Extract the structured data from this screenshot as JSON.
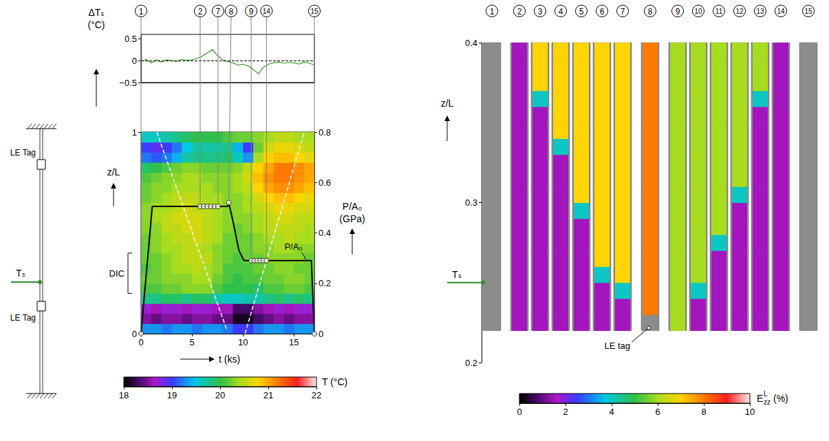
{
  "chart_data": [
    {
      "type": "line",
      "y_label": "ΔTₛ",
      "y_unit": "(°C)",
      "color": "#3a9a2a",
      "x": [
        0,
        0.5,
        1,
        1.5,
        2,
        2.5,
        3,
        3.5,
        4,
        4.5,
        5,
        5.5,
        6,
        6.5,
        7,
        7.5,
        8,
        8.5,
        9,
        9.5,
        10,
        10.5,
        11,
        11.5,
        12,
        12.5,
        13,
        13.5,
        14,
        14.5,
        15,
        15.5,
        16,
        16.5,
        17
      ],
      "values": [
        -0.02,
        0.03,
        -0.05,
        0.02,
        -0.03,
        0.02,
        0,
        -0.02,
        0.03,
        0.01,
        0.02,
        0.05,
        0.1,
        0.18,
        0.25,
        0.12,
        0.02,
        -0.02,
        -0.05,
        -0.1,
        -0.08,
        -0.12,
        -0.2,
        -0.3,
        -0.15,
        -0.08,
        -0.05,
        -0.03,
        -0.06,
        -0.04,
        -0.05,
        -0.08,
        -0.03,
        -0.06,
        -0.1
      ],
      "xlim": [
        0,
        17
      ],
      "ylim": [
        -0.5,
        0.6
      ],
      "yticks": [
        {
          "value": -0.5,
          "label": "−0.5"
        },
        0,
        0.5
      ],
      "tick_labels": "y",
      "reference_line": 0,
      "frame_labels": [
        "1",
        "2",
        "7",
        "8",
        "9",
        "14",
        "15"
      ]
    },
    {
      "type": "heatmap",
      "x_label": "t (ks)",
      "y_label": "z/L",
      "y2_label": "P/A₀",
      "y2_unit": "(GPa)",
      "xlim": [
        0,
        17
      ],
      "xticks": [
        0,
        5,
        10,
        15
      ],
      "ylim": [
        0,
        1
      ],
      "yticks": [
        0,
        1
      ],
      "y2lim": [
        0,
        0.8
      ],
      "y2ticks": [
        0,
        0.2,
        0.4,
        0.6,
        0.8
      ],
      "t_edges": [
        0,
        1,
        2,
        3,
        4,
        5,
        6,
        7,
        8,
        9,
        10,
        11,
        12,
        13,
        14,
        15,
        16,
        17
      ],
      "z_edges": [
        0,
        0.05,
        0.1,
        0.15,
        0.2,
        0.25,
        0.3,
        0.35,
        0.4,
        0.45,
        0.5,
        0.55,
        0.6,
        0.65,
        0.7,
        0.75,
        0.8,
        0.85,
        0.9,
        0.95,
        1
      ],
      "T": [
        [
          19.3,
          19.3,
          19.2,
          19.3,
          19.3,
          19.2,
          19.3,
          19.3,
          19.2,
          19.0,
          19.0,
          19.2,
          19.3,
          19.3,
          19.2,
          19.3,
          19.3
        ],
        [
          18.5,
          18.4,
          18.5,
          18.5,
          18.4,
          18.5,
          18.5,
          18.4,
          18.4,
          18.1,
          18.1,
          18.3,
          18.4,
          18.5,
          18.4,
          18.5,
          18.5
        ],
        [
          18.7,
          18.6,
          18.7,
          18.7,
          18.6,
          18.7,
          18.7,
          18.6,
          18.6,
          18.3,
          18.3,
          18.5,
          18.6,
          18.7,
          18.6,
          18.7,
          18.7
        ],
        [
          19.8,
          19.8,
          19.9,
          19.9,
          19.8,
          19.9,
          19.9,
          19.7,
          19.6,
          19.6,
          19.7,
          19.7,
          19.8,
          19.9,
          19.8,
          19.9,
          19.8
        ],
        [
          20.1,
          20.1,
          20.2,
          20.2,
          20.3,
          20.3,
          20.3,
          20.1,
          20.0,
          20.0,
          20.0,
          19.9,
          20.1,
          20.1,
          20.2,
          20.2,
          20.1
        ],
        [
          20.2,
          20.2,
          20.3,
          20.3,
          20.3,
          20.4,
          20.4,
          20.2,
          20.1,
          20.0,
          20.1,
          20.1,
          20.2,
          20.2,
          20.3,
          20.3,
          20.2
        ],
        [
          20.1,
          20.2,
          20.3,
          20.4,
          20.4,
          20.5,
          20.4,
          20.3,
          20.1,
          20.1,
          20.1,
          20.2,
          20.2,
          20.3,
          20.3,
          20.2,
          20.2
        ],
        [
          20.2,
          20.2,
          20.3,
          20.4,
          20.5,
          20.5,
          20.5,
          20.3,
          20.2,
          20.1,
          20.2,
          20.2,
          20.3,
          20.3,
          20.3,
          20.3,
          20.2
        ],
        [
          20.2,
          20.3,
          20.4,
          20.4,
          20.5,
          20.5,
          20.4,
          20.3,
          20.2,
          20.2,
          20.2,
          20.3,
          20.3,
          20.4,
          20.4,
          20.3,
          20.3
        ],
        [
          20.2,
          20.3,
          20.4,
          20.5,
          20.5,
          20.6,
          20.5,
          20.4,
          20.2,
          20.2,
          20.2,
          20.3,
          20.4,
          20.4,
          20.5,
          20.4,
          20.4
        ],
        [
          20.3,
          20.3,
          20.5,
          20.5,
          20.6,
          20.6,
          20.5,
          20.4,
          20.3,
          20.2,
          20.3,
          20.4,
          20.5,
          20.5,
          20.5,
          20.5,
          20.4
        ],
        [
          20.3,
          20.4,
          20.5,
          20.6,
          20.6,
          20.6,
          20.5,
          20.4,
          20.3,
          20.3,
          20.3,
          20.4,
          20.5,
          20.6,
          20.6,
          20.5,
          20.5
        ],
        [
          20.3,
          20.4,
          20.4,
          20.5,
          20.6,
          20.5,
          20.5,
          20.4,
          20.3,
          20.3,
          20.4,
          20.5,
          20.6,
          20.7,
          20.7,
          20.6,
          20.6
        ],
        [
          20.2,
          20.3,
          20.4,
          20.5,
          20.5,
          20.5,
          20.4,
          20.4,
          20.3,
          20.3,
          20.4,
          20.6,
          20.8,
          20.9,
          20.9,
          20.8,
          20.7
        ],
        [
          20.2,
          20.3,
          20.3,
          20.4,
          20.4,
          20.4,
          20.4,
          20.3,
          20.3,
          20.4,
          20.5,
          20.8,
          21.0,
          21.1,
          21.1,
          21.0,
          20.9
        ],
        [
          20.1,
          20.2,
          20.3,
          20.3,
          20.4,
          20.4,
          20.3,
          20.3,
          20.3,
          20.4,
          20.6,
          20.9,
          21.1,
          21.2,
          21.2,
          21.1,
          21.0
        ],
        [
          19.9,
          20.0,
          20.1,
          20.2,
          20.3,
          20.3,
          20.2,
          20.2,
          20.2,
          20.3,
          20.5,
          20.8,
          21.0,
          21.2,
          21.2,
          21.1,
          21.0
        ],
        [
          19.2,
          19.1,
          19.2,
          19.4,
          19.7,
          19.8,
          19.8,
          19.8,
          19.9,
          19.6,
          19.3,
          20.4,
          20.8,
          20.9,
          20.9,
          20.8,
          20.7
        ],
        [
          19.0,
          18.9,
          19.0,
          19.2,
          19.5,
          19.7,
          19.7,
          19.7,
          19.8,
          19.4,
          19.0,
          20.2,
          20.6,
          20.7,
          20.7,
          20.6,
          20.5
        ],
        [
          19.6,
          19.6,
          19.7,
          19.8,
          19.9,
          20.0,
          20.0,
          20.0,
          20.1,
          20.2,
          20.2,
          20.3,
          20.4,
          20.5,
          20.5,
          20.4,
          20.4
        ]
      ],
      "color_bar": {
        "label": "T (°C)",
        "range": [
          18,
          22
        ],
        "ticks": [
          18,
          19,
          20,
          21,
          22
        ]
      },
      "series": [
        {
          "name": "P/A₀",
          "axis": "y2",
          "color": "#000000",
          "type": "line",
          "x": [
            0,
            1.1,
            8.5,
            8.6,
            9.0,
            9.6,
            10.1,
            16.7,
            17
          ],
          "values": [
            0,
            0.505,
            0.505,
            0.52,
            0.45,
            0.33,
            0.29,
            0.29,
            0
          ]
        }
      ],
      "frames": [
        {
          "label": "1",
          "t": 0,
          "P": 0
        },
        {
          "label": "2",
          "t": 5.8,
          "P": 0.505
        },
        {
          "label": "3",
          "t": 6.15,
          "P": 0.505
        },
        {
          "label": "4",
          "t": 6.5,
          "P": 0.505
        },
        {
          "label": "5",
          "t": 6.85,
          "P": 0.505
        },
        {
          "label": "6",
          "t": 7.2,
          "P": 0.505
        },
        {
          "label": "7",
          "t": 7.55,
          "P": 0.505
        },
        {
          "label": "8",
          "t": 8.6,
          "P": 0.52
        },
        {
          "label": "9",
          "t": 10.8,
          "P": 0.29
        },
        {
          "label": "10",
          "t": 11.1,
          "P": 0.29
        },
        {
          "label": "11",
          "t": 11.4,
          "P": 0.29
        },
        {
          "label": "12",
          "t": 11.7,
          "P": 0.29
        },
        {
          "label": "13",
          "t": 12.0,
          "P": 0.29
        },
        {
          "label": "14",
          "t": 12.3,
          "P": 0.29
        },
        {
          "label": "15",
          "t": 17,
          "P": 0
        }
      ],
      "dashed_lines": [
        {
          "x": [
            1.55,
            8.4
          ],
          "z": [
            1,
            0.02
          ]
        },
        {
          "x": [
            10.2,
            16.0
          ],
          "z": [
            0,
            1
          ]
        }
      ],
      "dic_label": "DIC",
      "dic_z": [
        0.2,
        0.4
      ]
    },
    {
      "type": "heatmap",
      "y_label": "z/L",
      "ylim": [
        0.2,
        0.4
      ],
      "yticks": [
        0.2,
        0.3,
        0.4
      ],
      "z_edges": [
        0.22,
        0.23,
        0.24,
        0.25,
        0.26,
        0.27,
        0.28,
        0.29,
        0.3,
        0.31,
        0.32,
        0.33,
        0.34,
        0.35,
        0.36,
        0.37,
        0.38,
        0.39,
        0.4
      ],
      "color_bar": {
        "label": {
          "base": "E",
          "sub": "zz",
          "sup": "L",
          "unit": "(%)"
        },
        "range": [
          0,
          10
        ],
        "ticks": [
          0,
          2,
          4,
          6,
          8,
          10
        ]
      },
      "ts_label": "Tₛ",
      "ts_z": 0.25,
      "tag_label": "LE tag",
      "tag_frame": "8",
      "frames": [
        {
          "label": "1",
          "strain": [
            null,
            null,
            null,
            null,
            null,
            null,
            null,
            null,
            null,
            null,
            null,
            null,
            null,
            null,
            null,
            null,
            null,
            null
          ]
        },
        {
          "label": "2",
          "strain": [
            1.5,
            1.5,
            1.5,
            1.5,
            1.5,
            1.5,
            1.5,
            1.5,
            1.5,
            1.5,
            1.5,
            1.5,
            1.5,
            1.5,
            1.5,
            1.5,
            1.5,
            1.5
          ]
        },
        {
          "label": "3",
          "strain": [
            1.5,
            1.5,
            1.5,
            1.5,
            1.5,
            1.5,
            1.5,
            1.5,
            1.5,
            1.5,
            1.5,
            1.5,
            1.5,
            1.5,
            4,
            7,
            7,
            7
          ]
        },
        {
          "label": "4",
          "strain": [
            1.5,
            1.5,
            1.5,
            1.5,
            1.5,
            1.5,
            1.5,
            1.5,
            1.5,
            1.5,
            1.5,
            4,
            7,
            7,
            7,
            7,
            7,
            7
          ]
        },
        {
          "label": "5",
          "strain": [
            1.5,
            1.5,
            1.5,
            1.5,
            1.5,
            1.5,
            1.5,
            4,
            7,
            7,
            7,
            7,
            7,
            7,
            7,
            7,
            7,
            7
          ]
        },
        {
          "label": "6",
          "strain": [
            1.5,
            1.5,
            1.5,
            4,
            7,
            7,
            7,
            7,
            7,
            7,
            7,
            7,
            7,
            7,
            7,
            7,
            7,
            7
          ]
        },
        {
          "label": "7",
          "strain": [
            1.5,
            1.5,
            4,
            7,
            7,
            7,
            7,
            7,
            7,
            7,
            7,
            7,
            7,
            7,
            7,
            7,
            7,
            7
          ]
        },
        {
          "label": "8",
          "strain": [
            null,
            8,
            8,
            8,
            8,
            8,
            8,
            8,
            8,
            8,
            8,
            8,
            8,
            8,
            8,
            8,
            8,
            8
          ]
        },
        {
          "label": "9",
          "strain": [
            6,
            6,
            6,
            6,
            6,
            6,
            6,
            6,
            6,
            6,
            6,
            6,
            6,
            6,
            6,
            6,
            6,
            6
          ]
        },
        {
          "label": "10",
          "strain": [
            1.5,
            1.5,
            4,
            6,
            6,
            6,
            6,
            6,
            6,
            6,
            6,
            6,
            6,
            6,
            6,
            6,
            6,
            6
          ]
        },
        {
          "label": "11",
          "strain": [
            1.5,
            1.5,
            1.5,
            1.5,
            1.5,
            4,
            6,
            6,
            6,
            6,
            6,
            6,
            6,
            6,
            6,
            6,
            6,
            6
          ]
        },
        {
          "label": "12",
          "strain": [
            1.5,
            1.5,
            1.5,
            1.5,
            1.5,
            1.5,
            1.5,
            1.5,
            4,
            6,
            6,
            6,
            6,
            6,
            6,
            6,
            6,
            6
          ]
        },
        {
          "label": "13",
          "strain": [
            1.5,
            1.5,
            1.5,
            1.5,
            1.5,
            1.5,
            1.5,
            1.5,
            1.5,
            1.5,
            1.5,
            1.5,
            1.5,
            1.5,
            4,
            6,
            6,
            6
          ]
        },
        {
          "label": "14",
          "strain": [
            1.5,
            1.5,
            1.5,
            1.5,
            1.5,
            1.5,
            1.5,
            1.5,
            1.5,
            1.5,
            1.5,
            1.5,
            1.5,
            1.5,
            1.5,
            1.5,
            1.5,
            1.5
          ]
        },
        {
          "label": "15",
          "strain": [
            null,
            null,
            null,
            null,
            null,
            null,
            null,
            null,
            null,
            null,
            null,
            null,
            null,
            null,
            null,
            null,
            null,
            null
          ]
        }
      ]
    }
  ],
  "schematic": {
    "tag_label": "LE Tag",
    "sensor_label": "Tₛ"
  }
}
